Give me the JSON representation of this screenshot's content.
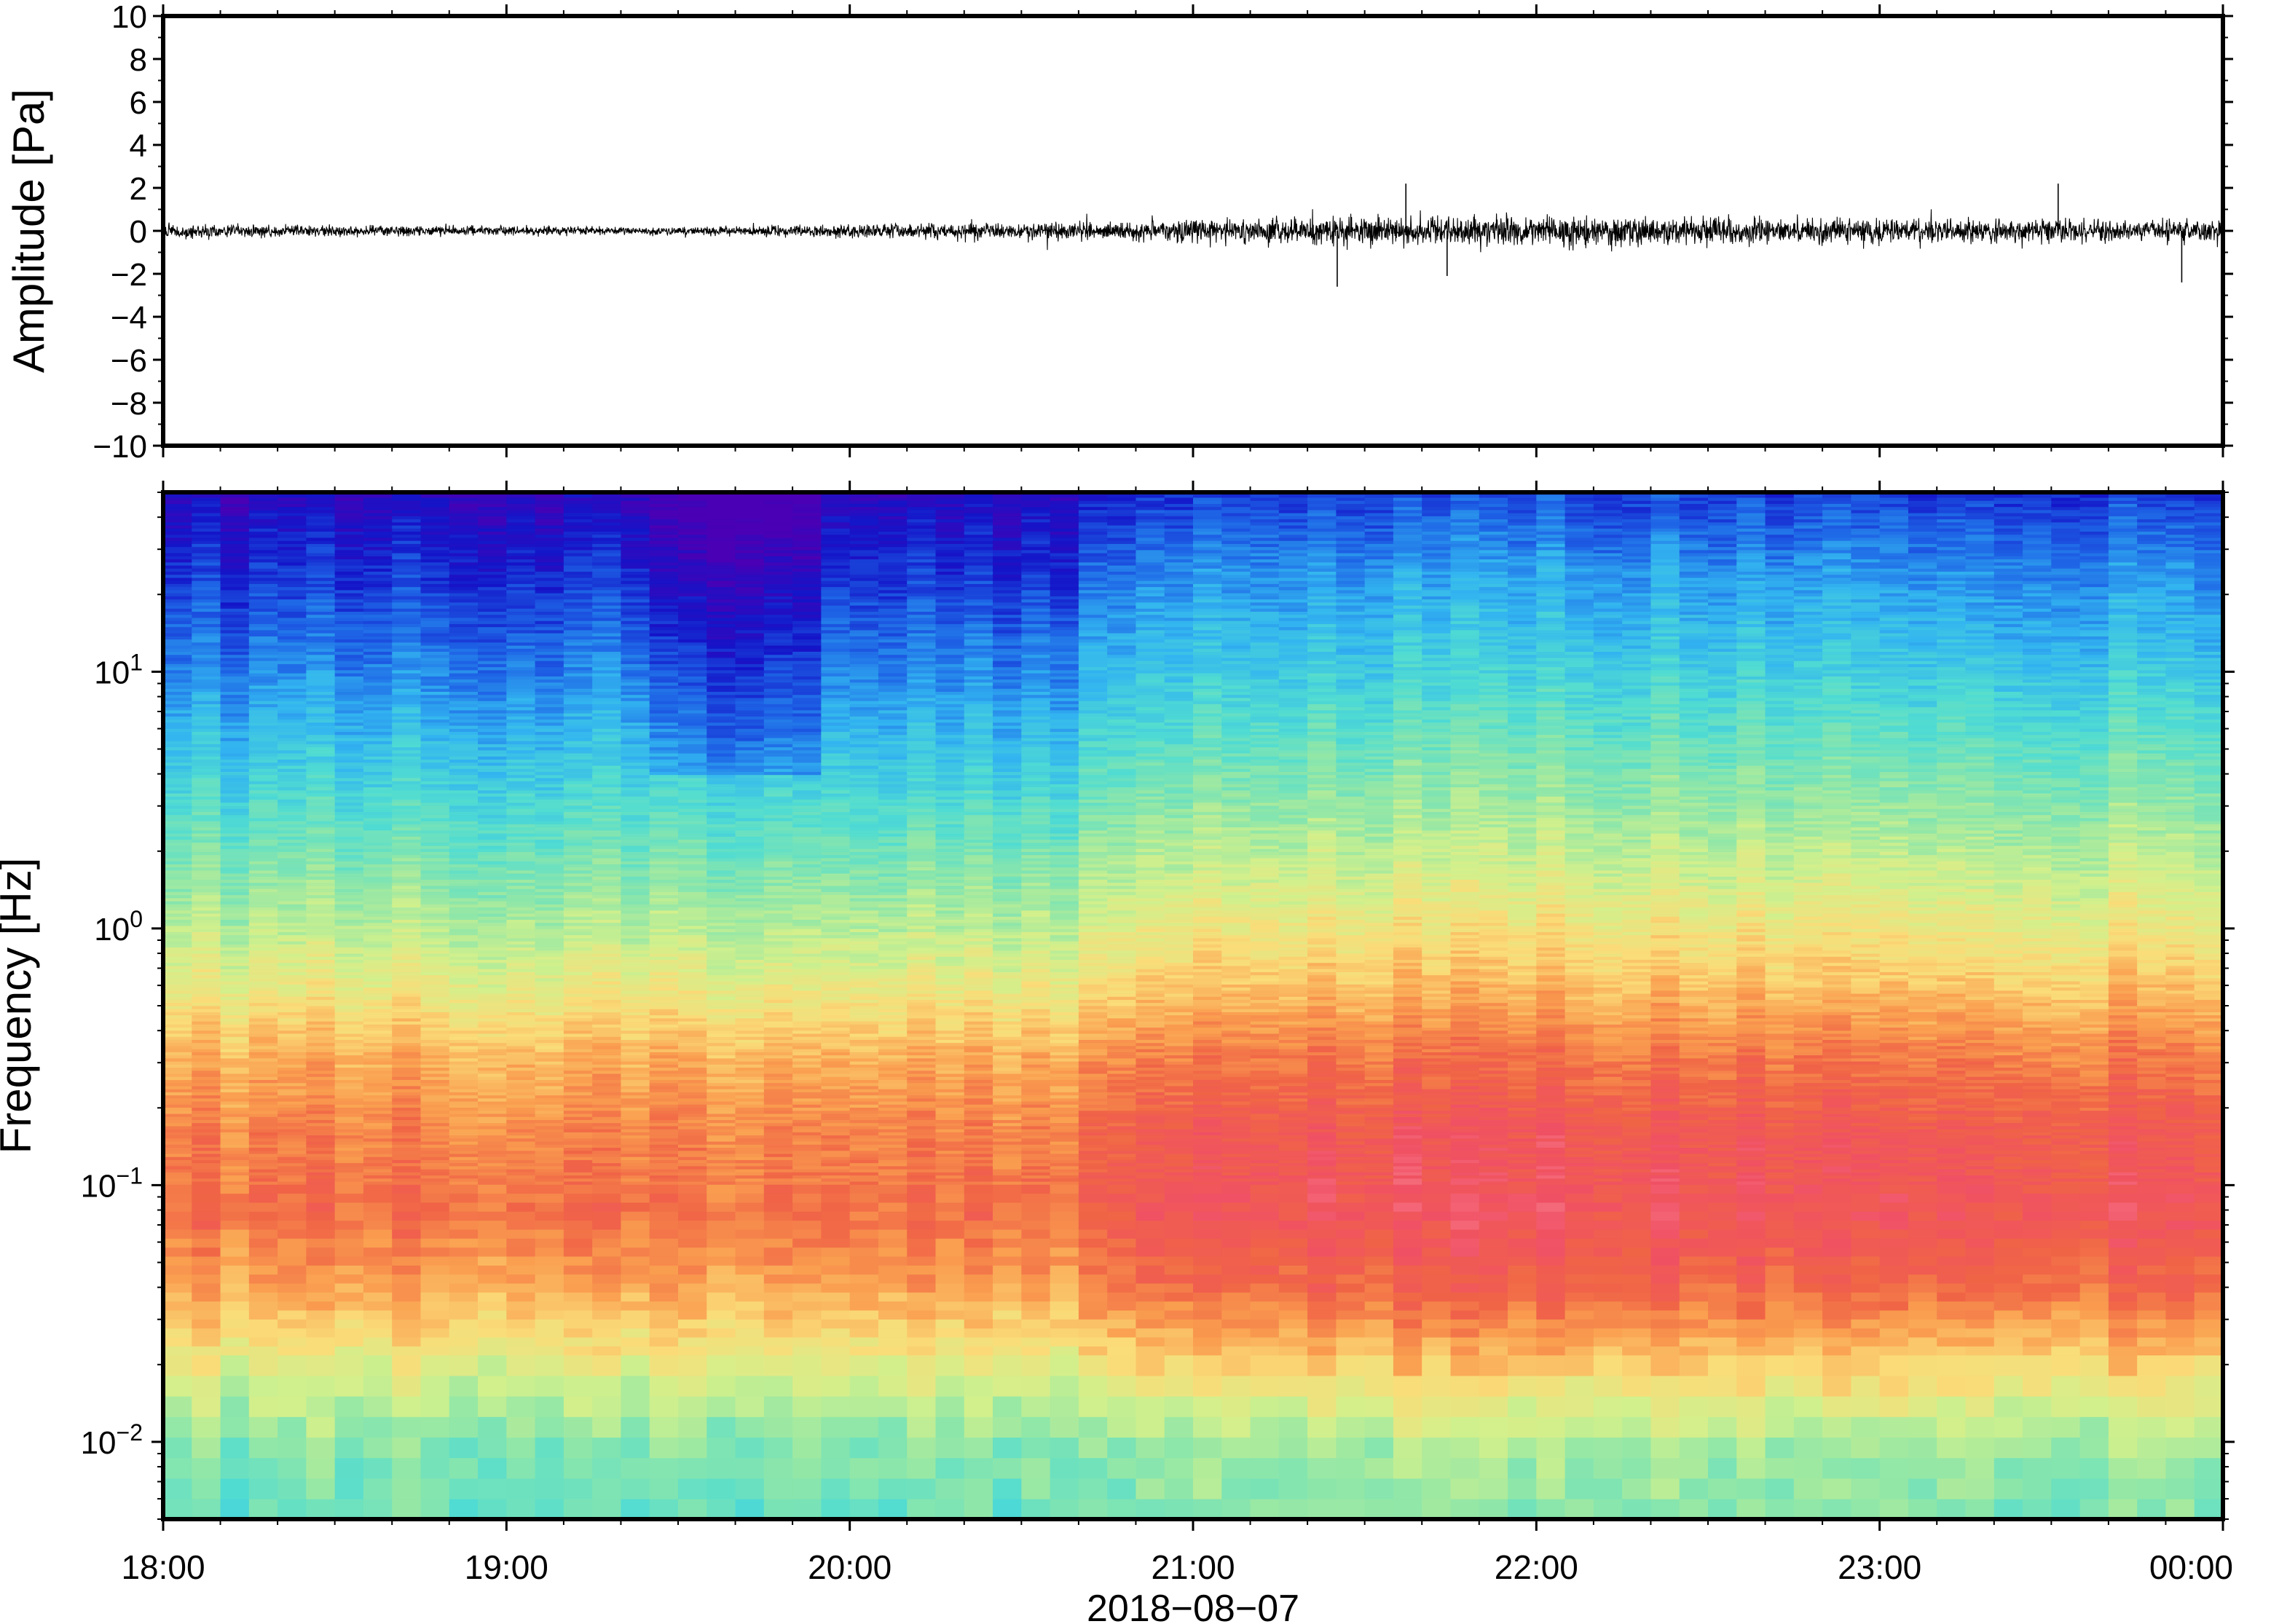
{
  "chart_data": [
    {
      "type": "line",
      "name": "waveform",
      "ylabel": "Amplitude [Pa]",
      "ylim": [
        -10,
        10
      ],
      "yticks": [
        -10,
        -8,
        -6,
        -4,
        -2,
        0,
        2,
        4,
        6,
        8,
        10
      ],
      "ytick_labels": [
        "−10",
        "−8",
        "−6",
        "−4",
        "−2",
        "0",
        "2",
        "4",
        "6",
        "8",
        "10"
      ],
      "x_range": [
        "18:00",
        "00:00"
      ],
      "envelope_hours": [
        0,
        0.5,
        1,
        1.5,
        2,
        2.5,
        2.8,
        3,
        3.5,
        4,
        4.5,
        5,
        5.5,
        6
      ],
      "envelope_amplitude": [
        0.6,
        0.5,
        0.4,
        0.35,
        0.6,
        0.7,
        0.8,
        1.0,
        1.3,
        1.3,
        1.2,
        1.1,
        1.0,
        1.0
      ],
      "spikes": [
        {
          "hour": 3.42,
          "value": -2.6
        },
        {
          "hour": 3.62,
          "value": 2.2
        },
        {
          "hour": 3.74,
          "value": -2.1
        },
        {
          "hour": 5.52,
          "value": 2.2
        },
        {
          "hour": 5.88,
          "value": -2.4
        }
      ],
      "grid": false
    },
    {
      "type": "heatmap",
      "name": "spectrogram",
      "ylabel": "Frequency [Hz]",
      "xlabel": "2018−08−07",
      "y_scale": "log",
      "ylim": [
        0.005,
        50
      ],
      "yticks": [
        {
          "value": 0.01,
          "base": "10",
          "exp": "−2"
        },
        {
          "value": 0.1,
          "base": "10",
          "exp": "−1"
        },
        {
          "value": 1,
          "base": "10",
          "exp": "0"
        },
        {
          "value": 10,
          "base": "10",
          "exp": "1"
        }
      ],
      "xticks": [
        "18:00",
        "19:00",
        "20:00",
        "21:00",
        "22:00",
        "23:00",
        "00:00"
      ],
      "colormap": [
        "#4a00b4",
        "#1414c8",
        "#1e64e6",
        "#32b4f0",
        "#50dcd2",
        "#8ce6aa",
        "#d2f08c",
        "#fadc78",
        "#faa050",
        "#f06446",
        "#f05064",
        "#fa8c96"
      ],
      "power_profile_log10_freq": [
        -2.3,
        -2,
        -1.7,
        -1.4,
        -1.1,
        -0.8,
        -0.5,
        -0.2,
        0.2,
        0.6,
        1.0,
        1.4,
        1.7
      ],
      "power_profile_quiet_period": [
        0.4,
        0.45,
        0.58,
        0.72,
        0.8,
        0.77,
        0.7,
        0.58,
        0.45,
        0.33,
        0.22,
        0.12,
        0.05
      ],
      "power_profile_noisy_period": [
        0.45,
        0.5,
        0.67,
        0.83,
        0.9,
        0.88,
        0.8,
        0.68,
        0.56,
        0.45,
        0.34,
        0.25,
        0.15
      ],
      "grid": false
    }
  ]
}
